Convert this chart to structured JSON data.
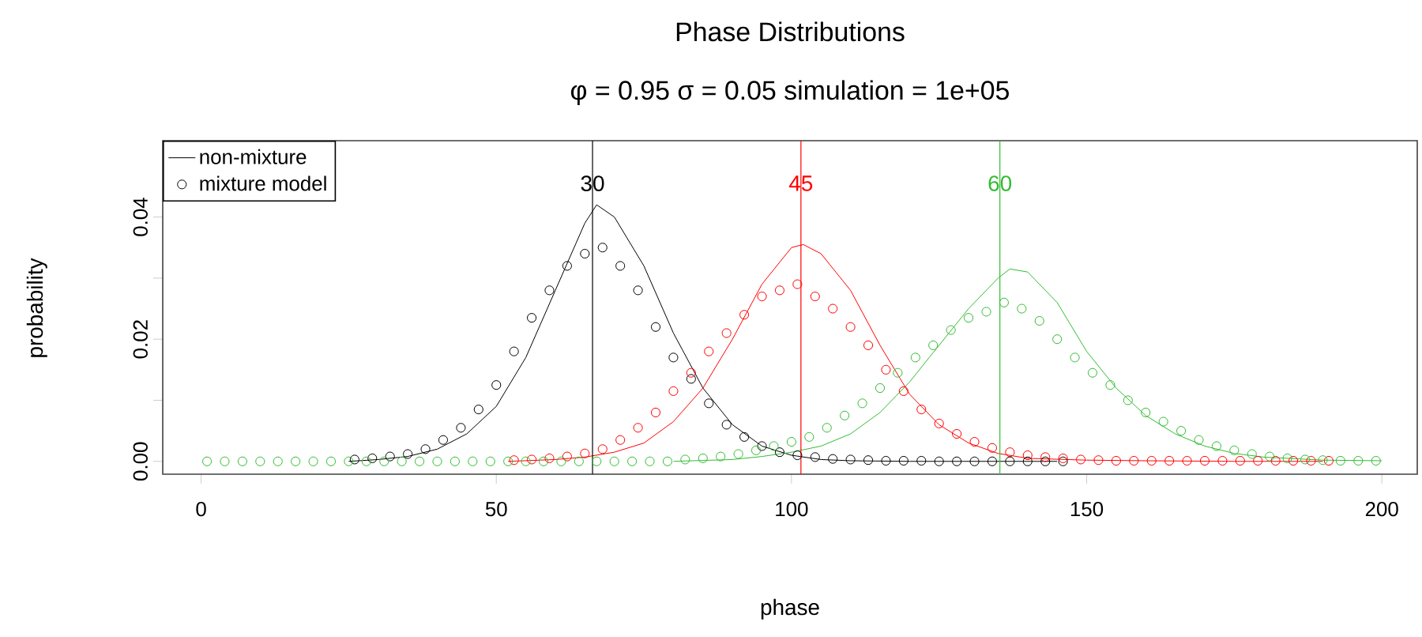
{
  "chart_data": {
    "type": "line",
    "title": "Phase Distributions",
    "subtitle": "φ = 0.95 σ = 0.05 simulation = 1e+05",
    "xlabel": "phase",
    "ylabel": "probability",
    "xlim": [
      -6.5,
      206
    ],
    "ylim": [
      -0.0021,
      0.0525
    ],
    "xticks": [
      0,
      50,
      100,
      150,
      200
    ],
    "yticks": [
      {
        "value": 0,
        "label": "0.00"
      },
      {
        "value": 0.01,
        "label": null
      },
      {
        "value": 0.02,
        "label": "0.02"
      },
      {
        "value": 0.03,
        "label": null
      },
      {
        "value": 0.04,
        "label": "0.04"
      }
    ],
    "grid": false,
    "legend": "top left",
    "ref_lines": [
      {
        "axis": "x",
        "value": 66.3,
        "color": "#000000"
      },
      {
        "axis": "x",
        "value": 101.6,
        "color": "#ff0000"
      },
      {
        "axis": "x",
        "value": 135.3,
        "color": "#33bb33"
      }
    ],
    "annotations": [
      {
        "text": "30",
        "x": 66.3,
        "y": 0.0455
      },
      {
        "text": "45",
        "x": 101.6,
        "y": 0.0455
      },
      {
        "text": "60",
        "x": 135.3,
        "y": 0.0455
      }
    ],
    "series": [
      {
        "name": "non-mixture",
        "marker": "none",
        "color": "#000000",
        "x": [
          25,
          30,
          35,
          40,
          45,
          50,
          55,
          60,
          65,
          67,
          70,
          75,
          80,
          85,
          90,
          95,
          100,
          105,
          110,
          120,
          130,
          145
        ],
        "values": [
          0,
          0.0003,
          0.0008,
          0.002,
          0.0045,
          0.009,
          0.017,
          0.028,
          0.039,
          0.042,
          0.04,
          0.032,
          0.021,
          0.012,
          0.006,
          0.0025,
          0.001,
          0.0003,
          0.0001,
          0,
          0,
          0
        ]
      },
      {
        "name": "mixture model",
        "type": "scatter",
        "marker": "circle",
        "color": "#000000",
        "x": [
          26,
          29,
          32,
          35,
          38,
          41,
          44,
          47,
          50,
          53,
          56,
          59,
          62,
          65,
          68,
          71,
          74,
          77,
          80,
          83,
          86,
          89,
          92,
          95,
          98,
          101,
          104,
          107,
          110,
          113,
          116,
          119,
          122,
          125,
          128,
          131,
          134,
          137,
          140,
          143,
          146
        ],
        "values": [
          0.0003,
          0.0005,
          0.0008,
          0.0012,
          0.002,
          0.0035,
          0.0055,
          0.0085,
          0.0125,
          0.018,
          0.0235,
          0.028,
          0.032,
          0.034,
          0.035,
          0.032,
          0.028,
          0.022,
          0.017,
          0.0135,
          0.0095,
          0.006,
          0.004,
          0.0025,
          0.0015,
          0.001,
          0.0007,
          0.0004,
          0.0003,
          0.0002,
          0.0001,
          0.0001,
          0.0001,
          0,
          0,
          0,
          0,
          0,
          0,
          0,
          0
        ]
      },
      {
        "marker": "none",
        "color": "#ff0000",
        "x": [
          52,
          60,
          65,
          70,
          75,
          80,
          85,
          90,
          95,
          100,
          102,
          105,
          110,
          115,
          120,
          125,
          130,
          135,
          140,
          150,
          160,
          175,
          190
        ],
        "values": [
          0,
          0.0003,
          0.0007,
          0.0015,
          0.003,
          0.0065,
          0.012,
          0.02,
          0.029,
          0.035,
          0.0355,
          0.034,
          0.028,
          0.019,
          0.011,
          0.006,
          0.003,
          0.0013,
          0.0005,
          0.0002,
          0.0001,
          0,
          0
        ]
      },
      {
        "type": "scatter",
        "marker": "circle",
        "color": "#ff0000",
        "x": [
          53,
          56,
          59,
          62,
          65,
          68,
          71,
          74,
          77,
          80,
          83,
          86,
          89,
          92,
          95,
          98,
          101,
          104,
          107,
          110,
          113,
          116,
          119,
          122,
          125,
          128,
          131,
          134,
          137,
          140,
          143,
          146,
          149,
          152,
          155,
          158,
          161,
          164,
          167,
          170,
          173,
          176,
          179,
          182,
          185,
          188,
          191
        ],
        "values": [
          0.0002,
          0.0003,
          0.0005,
          0.0008,
          0.0013,
          0.002,
          0.0035,
          0.0055,
          0.008,
          0.0115,
          0.0145,
          0.018,
          0.021,
          0.024,
          0.027,
          0.028,
          0.029,
          0.027,
          0.025,
          0.022,
          0.019,
          0.015,
          0.0115,
          0.0085,
          0.0062,
          0.0045,
          0.0032,
          0.0022,
          0.0015,
          0.001,
          0.0007,
          0.0005,
          0.0003,
          0.0002,
          0.0001,
          0.0001,
          0.0001,
          0.0001,
          0.0001,
          0.0001,
          0.0001,
          0.0001,
          0.0001,
          0.0001,
          0.0001,
          0.0001,
          0.0001
        ]
      },
      {
        "marker": "none",
        "color": "#33bb33",
        "x": [
          80,
          90,
          95,
          100,
          105,
          110,
          115,
          120,
          125,
          130,
          135,
          137,
          140,
          145,
          150,
          155,
          160,
          165,
          170,
          175,
          180,
          190,
          200
        ],
        "values": [
          0,
          0.0003,
          0.0008,
          0.0015,
          0.0025,
          0.0045,
          0.008,
          0.013,
          0.019,
          0.025,
          0.03,
          0.0315,
          0.031,
          0.026,
          0.018,
          0.012,
          0.0075,
          0.0045,
          0.0025,
          0.0013,
          0.0007,
          0.0002,
          0.0001
        ]
      },
      {
        "type": "scatter",
        "marker": "circle",
        "color": "#33bb33",
        "x": [
          1,
          4,
          7,
          10,
          13,
          16,
          19,
          22,
          25,
          28,
          31,
          34,
          37,
          40,
          43,
          46,
          49,
          52,
          55,
          58,
          61,
          64,
          67,
          70,
          73,
          76,
          79,
          82,
          85,
          88,
          91,
          94,
          97,
          100,
          103,
          106,
          109,
          112,
          115,
          118,
          121,
          124,
          127,
          130,
          133,
          136,
          139,
          142,
          145,
          148,
          151,
          154,
          157,
          160,
          163,
          166,
          169,
          172,
          175,
          178,
          181,
          184,
          187,
          190,
          193,
          196,
          199
        ],
        "values": [
          0,
          0,
          0,
          0,
          0,
          0,
          0,
          0,
          0,
          0,
          0,
          0,
          0,
          0,
          0,
          0,
          0,
          0,
          0,
          0,
          0,
          0,
          0,
          0,
          0,
          0,
          0,
          0.0003,
          0.0005,
          0.0008,
          0.0012,
          0.0018,
          0.0025,
          0.0032,
          0.004,
          0.0055,
          0.0075,
          0.0095,
          0.012,
          0.0145,
          0.017,
          0.019,
          0.0215,
          0.0235,
          0.0245,
          0.026,
          0.025,
          0.023,
          0.02,
          0.017,
          0.0145,
          0.0125,
          0.01,
          0.008,
          0.0065,
          0.005,
          0.0035,
          0.0025,
          0.0018,
          0.0012,
          0.0008,
          0.0005,
          0.0003,
          0.0002,
          0.0001,
          0.0001,
          0.0001
        ]
      }
    ]
  }
}
